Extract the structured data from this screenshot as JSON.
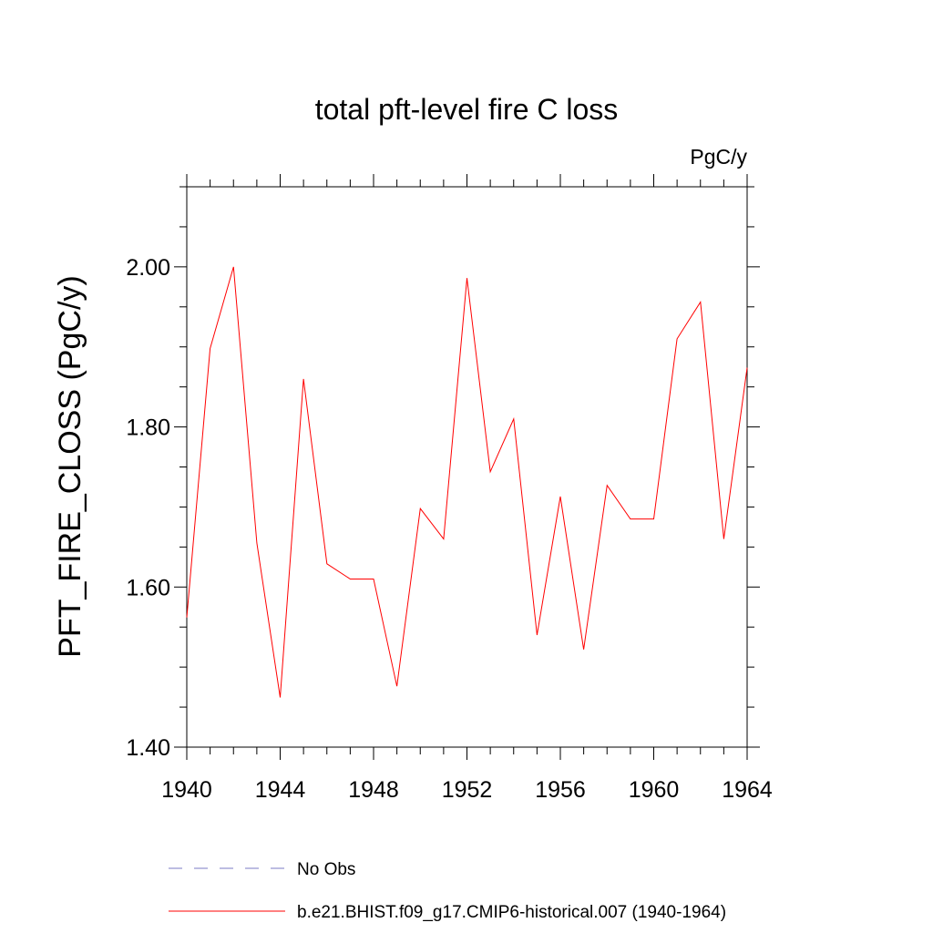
{
  "chart_data": {
    "type": "line",
    "title": "total pft-level fire C loss",
    "units": "PgC/y",
    "ylabel": "PFT_FIRE_CLOSS  (PgC/y)",
    "xlabel": "",
    "xlim": [
      1940,
      1964
    ],
    "ylim": [
      1.4,
      2.1
    ],
    "x_ticks": [
      1940,
      1944,
      1948,
      1952,
      1956,
      1960,
      1964
    ],
    "x_tick_labels": [
      "1940",
      "1944",
      "1948",
      "1952",
      "1956",
      "1960",
      "1964"
    ],
    "y_ticks": [
      1.4,
      1.6,
      1.8,
      2.0
    ],
    "y_tick_labels": [
      "1.40",
      "1.60",
      "1.80",
      "2.00"
    ],
    "grid": false,
    "series": [
      {
        "name": "b.e21.BHIST.f09_g17.CMIP6-historical.007 (1940-1964)",
        "color": "#ff0000",
        "style": "solid",
        "x": [
          1940,
          1941,
          1942,
          1943,
          1944,
          1945,
          1946,
          1947,
          1948,
          1949,
          1950,
          1951,
          1952,
          1953,
          1954,
          1955,
          1956,
          1957,
          1958,
          1959,
          1960,
          1961,
          1962,
          1963,
          1964
        ],
        "values": [
          1.562,
          1.898,
          2.0,
          1.655,
          1.462,
          1.86,
          1.629,
          1.61,
          1.61,
          1.476,
          1.698,
          1.66,
          1.986,
          1.744,
          1.81,
          1.54,
          1.713,
          1.522,
          1.727,
          1.685,
          1.685,
          1.91,
          1.956,
          1.66,
          1.874
        ]
      }
    ],
    "legend": {
      "placement": "bottom-left",
      "entries": [
        {
          "label": "No Obs",
          "color": "#7b7bc4",
          "style": "dashed"
        },
        {
          "label": "b.e21.BHIST.f09_g17.CMIP6-historical.007 (1940-1964)",
          "color": "#ff0000",
          "style": "solid"
        }
      ]
    }
  }
}
